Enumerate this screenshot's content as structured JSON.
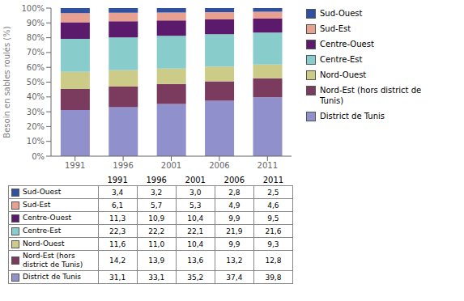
{
  "chart_data": {
    "type": "bar",
    "stacked": true,
    "categories": [
      "1991",
      "1996",
      "2001",
      "2006",
      "2011"
    ],
    "series": [
      {
        "name": "District de Tunis",
        "color": "#9090CC",
        "values": [
          31.1,
          33.1,
          35.2,
          37.4,
          39.7602
        ]
      },
      {
        "name": "Nord-Est (hors district de\nTunis)",
        "color": "#7B3B5E",
        "values": [
          14.2,
          13.9,
          13.6,
          13.2,
          12.7872
        ]
      },
      {
        "name": "Nord-Ouest",
        "color": "#CCCC88",
        "values": [
          11.6,
          11.0,
          10.4,
          9.9,
          9.2907
        ]
      },
      {
        "name": "Centre-Est",
        "color": "#88CCCC",
        "values": [
          22.3,
          22.2,
          22.1,
          21.9,
          21.5784
        ]
      },
      {
        "name": "Centre-Ouest",
        "color": "#5B1A6B",
        "values": [
          11.3,
          10.9,
          10.4,
          9.9,
          9.4905
        ]
      },
      {
        "name": "Sud-Est",
        "color": "#E8A090",
        "values": [
          6.1,
          5.7,
          5.3,
          4.9,
          4.5954
        ]
      },
      {
        "name": "Sud-Ouest",
        "color": "#3050A0",
        "values": [
          3.4,
          3.2,
          3.0,
          2.8,
          2.4975
        ]
      }
    ],
    "ylabel": "Besoin en sables roulés (%)",
    "ylim": [
      0,
      100
    ],
    "yticks": [
      {
        "value": 0,
        "label": "0%"
      },
      {
        "value": 10,
        "label": "10%"
      },
      {
        "value": 20,
        "label": "20%"
      },
      {
        "value": 30,
        "label": "30%"
      },
      {
        "value": 40,
        "label": "40%"
      },
      {
        "value": 50,
        "label": "50%"
      },
      {
        "value": 60,
        "label": "60%"
      },
      {
        "value": 70,
        "label": "70%"
      },
      {
        "value": 80,
        "label": "80%"
      },
      {
        "value": 90,
        "label": "90%"
      },
      {
        "value": 100,
        "label": "100%"
      }
    ],
    "grid": false,
    "legend": "right",
    "table": {
      "header": [
        "1991",
        "1996",
        "2001",
        "2006",
        "2011"
      ],
      "rows": [
        {
          "label": "Sud-Ouest",
          "color": "#3050A0",
          "values": [
            "3,4",
            "3,2",
            "3,0",
            "2,8",
            "2,5"
          ]
        },
        {
          "label": "Sud-Est",
          "color": "#E8A090",
          "values": [
            "6,1",
            "5,7",
            "5,3",
            "4,9",
            "4,6"
          ]
        },
        {
          "label": "Centre-Ouest",
          "color": "#5B1A6B",
          "values": [
            "11,3",
            "10,9",
            "10,4",
            "9,9",
            "9,5"
          ]
        },
        {
          "label": "Centre-Est",
          "color": "#88CCCC",
          "values": [
            "22,3",
            "22,2",
            "22,1",
            "21,9",
            "21,6"
          ]
        },
        {
          "label": "Nord-Ouest",
          "color": "#CCCC88",
          "values": [
            "11,6",
            "11,0",
            "10,4",
            "9,9",
            "9,3"
          ]
        },
        {
          "label": "Nord-Est (hors\ndistrict de Tunis)",
          "color": "#7B3B5E",
          "values": [
            "14,2",
            "13,9",
            "13,6",
            "13,2",
            "12,8"
          ]
        },
        {
          "label": "District de Tunis",
          "color": "#9090CC",
          "values": [
            "31,1",
            "33,1",
            "35,2",
            "37,4",
            "39,8"
          ]
        }
      ]
    }
  }
}
